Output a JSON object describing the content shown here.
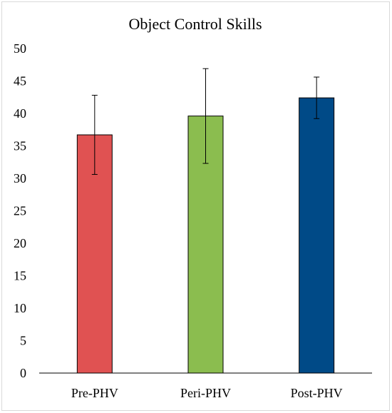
{
  "chart_data": {
    "type": "bar",
    "title": "Object Control Skills",
    "categories": [
      "Pre-PHV",
      "Peri-PHV",
      "Post-PHV"
    ],
    "values": [
      36.7,
      39.6,
      42.4
    ],
    "error": [
      6.1,
      7.3,
      3.2
    ],
    "colors": [
      "#e05252",
      "#8bbd4f",
      "#004a87"
    ],
    "ylim": [
      0,
      50
    ],
    "yticks": [
      0,
      5,
      10,
      15,
      20,
      25,
      30,
      35,
      40,
      45,
      50
    ],
    "grid": false,
    "xlabel": "",
    "ylabel": ""
  }
}
